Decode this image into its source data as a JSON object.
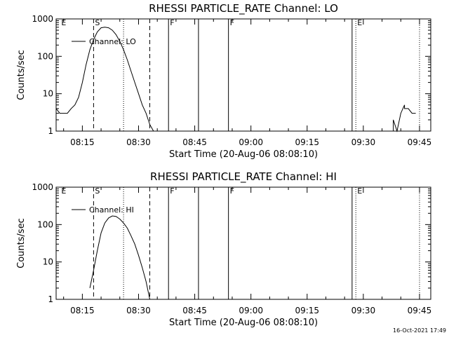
{
  "footer": {
    "timestamp": "16-Oct-2021 17:49"
  },
  "chart_data": [
    {
      "type": "line",
      "title": "RHESSI PARTICLE_RATE Channel: LO",
      "xlabel": "Start Time (20-Aug-06 08:08:10)",
      "ylabel": "Counts/sec",
      "yscale": "log",
      "xlim": [
        "08:08",
        "09:48"
      ],
      "ylim": [
        1,
        1000
      ],
      "x_ticks": [
        "08:15",
        "08:30",
        "08:45",
        "09:00",
        "09:15",
        "09:30",
        "09:45"
      ],
      "y_ticks": [
        "1",
        "10",
        "100",
        "1000"
      ],
      "legend": {
        "position": "top-left",
        "label": "Channel: LO"
      },
      "series": [
        {
          "name": "Channel: LO",
          "x": [
            "08:08",
            "08:09",
            "08:10",
            "08:11",
            "08:12",
            "08:13",
            "08:14",
            "08:15",
            "08:16",
            "08:17",
            "08:18",
            "08:19",
            "08:20",
            "08:21",
            "08:22",
            "08:23",
            "08:24",
            "08:25",
            "08:26",
            "08:27",
            "08:28",
            "08:29",
            "08:30",
            "08:31",
            "08:32",
            "08:33",
            "08:34"
          ],
          "y": [
            4,
            3,
            3,
            3,
            4,
            5,
            8,
            20,
            60,
            150,
            280,
            450,
            580,
            600,
            580,
            500,
            380,
            250,
            150,
            80,
            40,
            20,
            10,
            5,
            3,
            1.5,
            1
          ]
        },
        {
          "name": "Channel: LO",
          "x": [
            "09:38",
            "09:38",
            "09:39",
            "09:39",
            "09:40",
            "09:41",
            "09:41",
            "09:42",
            "09:43",
            "09:44"
          ],
          "y": [
            1,
            2,
            1,
            1,
            3,
            5,
            4,
            4,
            3,
            3
          ]
        }
      ],
      "markers": [
        {
          "label": "E",
          "time": "08:09",
          "style": "none"
        },
        {
          "label": "S",
          "time": "08:18",
          "style": "dashed"
        },
        {
          "label": "",
          "time": "08:26",
          "style": "dotted"
        },
        {
          "label": "",
          "time": "08:33",
          "style": "dashed"
        },
        {
          "label": "F",
          "time": "08:38",
          "style": "solid"
        },
        {
          "label": "",
          "time": "08:46",
          "style": "solid"
        },
        {
          "label": "F",
          "time": "08:54",
          "style": "solid"
        },
        {
          "label": "",
          "time": "09:27",
          "style": "solid"
        },
        {
          "label": "E",
          "time": "09:28",
          "style": "dotted"
        },
        {
          "label": "",
          "time": "09:45",
          "style": "dotted"
        }
      ]
    },
    {
      "type": "line",
      "title": "RHESSI PARTICLE_RATE Channel: HI",
      "xlabel": "Start Time (20-Aug-06 08:08:10)",
      "ylabel": "Counts/sec",
      "yscale": "log",
      "xlim": [
        "08:08",
        "09:48"
      ],
      "ylim": [
        1,
        1000
      ],
      "x_ticks": [
        "08:15",
        "08:30",
        "08:45",
        "09:00",
        "09:15",
        "09:30",
        "09:45"
      ],
      "y_ticks": [
        "1",
        "10",
        "100",
        "1000"
      ],
      "legend": {
        "position": "top-left",
        "label": "Channel: HI"
      },
      "series": [
        {
          "name": "Channel: HI",
          "x": [
            "08:17",
            "08:18",
            "08:19",
            "08:20",
            "08:21",
            "08:22",
            "08:23",
            "08:24",
            "08:25",
            "08:26",
            "08:27",
            "08:28",
            "08:29",
            "08:30",
            "08:31",
            "08:32",
            "08:33"
          ],
          "y": [
            2,
            6,
            20,
            60,
            110,
            150,
            170,
            165,
            140,
            110,
            80,
            50,
            30,
            15,
            7,
            3,
            1
          ]
        }
      ],
      "markers": [
        {
          "label": "E",
          "time": "08:09",
          "style": "none"
        },
        {
          "label": "S",
          "time": "08:18",
          "style": "dashed"
        },
        {
          "label": "",
          "time": "08:26",
          "style": "dotted"
        },
        {
          "label": "",
          "time": "08:33",
          "style": "dashed"
        },
        {
          "label": "F",
          "time": "08:38",
          "style": "solid"
        },
        {
          "label": "",
          "time": "08:46",
          "style": "solid"
        },
        {
          "label": "F",
          "time": "08:54",
          "style": "solid"
        },
        {
          "label": "",
          "time": "09:27",
          "style": "solid"
        },
        {
          "label": "E",
          "time": "09:28",
          "style": "dotted"
        },
        {
          "label": "",
          "time": "09:45",
          "style": "dotted"
        }
      ]
    }
  ]
}
